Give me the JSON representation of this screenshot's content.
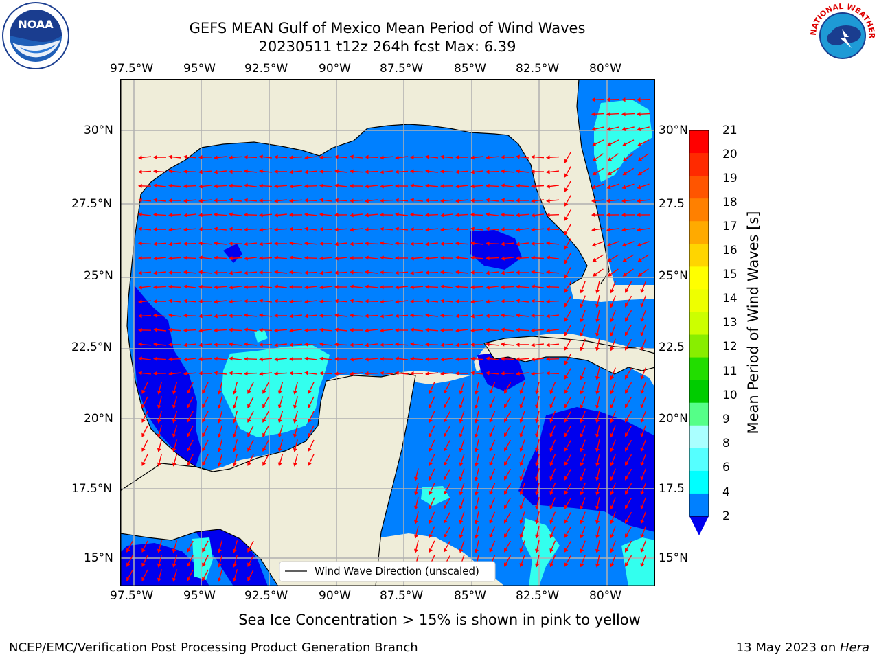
{
  "title": {
    "line1": "GEFS MEAN Gulf of Mexico Mean Period of Wind Waves",
    "line2": "20230511 t12z 264h fcst   Max: 6.39"
  },
  "map": {
    "lon_labels": [
      "97.5°W",
      "95°W",
      "92.5°W",
      "90°W",
      "87.5°W",
      "85°W",
      "82.5°W",
      "80°W"
    ],
    "lat_labels_left": [
      "30°N",
      "27.5°N",
      "25°N",
      "22.5°N",
      "20°N",
      "17.5°N",
      "15°N"
    ],
    "lat_labels_right": [
      "30°N",
      "27.5",
      "25°N",
      "22.5",
      "20°N",
      "17.5",
      "15°N"
    ],
    "legend": "Wind Wave Direction (unscaled)",
    "colors": {
      "land": "#efedd9",
      "wave_2_4": "#0080ff",
      "wave_lt2": "#0000ee",
      "wave_4_6": "#33ffee",
      "arrows": "#ff0000",
      "grid": "#b0b0b0"
    }
  },
  "colorbar": {
    "label": "Mean Period of Wind Waves [s]",
    "ticks": [
      "21",
      "20",
      "19",
      "18",
      "17",
      "16",
      "15",
      "14",
      "13",
      "12",
      "11",
      "10",
      "9",
      "8",
      "6",
      "4",
      "2"
    ],
    "colors": [
      "#ff0000",
      "#ff2a00",
      "#ff5500",
      "#ff8000",
      "#ffaa00",
      "#ffd500",
      "#ffff00",
      "#eeff00",
      "#ccff00",
      "#88ee00",
      "#22dd00",
      "#00cc00",
      "#55ff88",
      "#aaffff",
      "#55ffff",
      "#00ffff",
      "#0080ff"
    ],
    "extend_color": "#0000ee"
  },
  "logos": {
    "noaa_text": "NOAA",
    "nws_text": "NATIONAL WEATHER SERVICE"
  },
  "caption": "Sea Ice Concentration > 15% is shown in pink to yellow",
  "footer": {
    "left": "NCEP/EMC/Verification Post Processing Product Generation Branch",
    "right_date": "13 May 2023 on ",
    "right_host": "Hera"
  }
}
